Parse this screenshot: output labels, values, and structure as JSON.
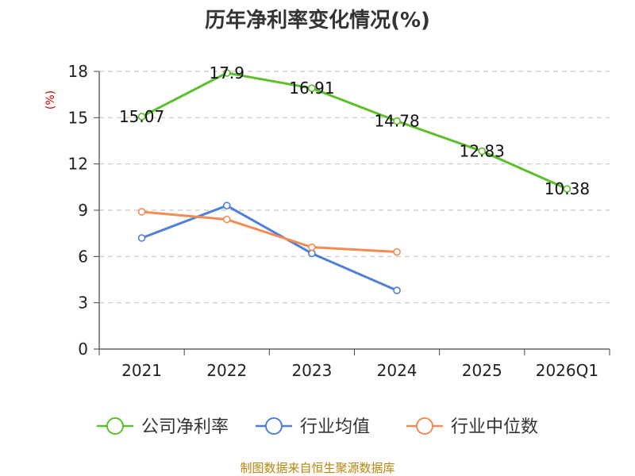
{
  "chart_data": {
    "type": "line",
    "title": "历年净利率变化情况(%)",
    "xlabel": "",
    "ylabel": "(%)",
    "categories": [
      "2021",
      "2022",
      "2023",
      "2024",
      "2025",
      "2026Q1"
    ],
    "ylim": [
      0,
      18
    ],
    "yticks": [
      0,
      3,
      6,
      9,
      12,
      15,
      18
    ],
    "grid": true,
    "legend_position": "bottom",
    "series": [
      {
        "name": "公司净利率",
        "color": "#5cbf2a",
        "values": [
          15.07,
          17.9,
          16.91,
          14.78,
          12.83,
          10.38
        ],
        "labels": [
          "15.07",
          "17.9",
          "16.91",
          "14.78",
          "12.83",
          "10.38"
        ]
      },
      {
        "name": "行业均值",
        "color": "#4f7fd9",
        "values": [
          7.2,
          9.3,
          6.2,
          3.8,
          null,
          null
        ]
      },
      {
        "name": "行业中位数",
        "color": "#f28c55",
        "values": [
          8.9,
          8.4,
          6.6,
          6.3,
          null,
          null
        ]
      }
    ],
    "source": "制图数据来自恒生聚源数据库"
  }
}
